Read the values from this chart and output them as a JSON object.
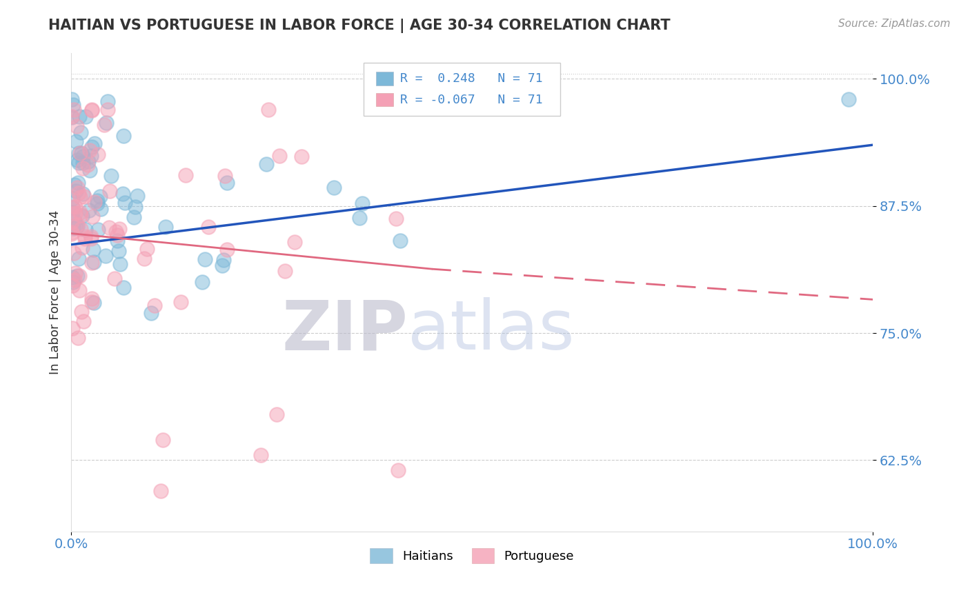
{
  "title": "HAITIAN VS PORTUGUESE IN LABOR FORCE | AGE 30-34 CORRELATION CHART",
  "source_text": "Source: ZipAtlas.com",
  "ylabel": "In Labor Force | Age 30-34",
  "xlim": [
    0.0,
    1.0
  ],
  "ylim": [
    0.555,
    1.025
  ],
  "yticks": [
    0.625,
    0.75,
    0.875,
    1.0
  ],
  "ytick_labels": [
    "62.5%",
    "75.0%",
    "87.5%",
    "100.0%"
  ],
  "xticks": [
    0.0,
    1.0
  ],
  "xtick_labels": [
    "0.0%",
    "100.0%"
  ],
  "haitian_color": "#7db8d8",
  "portuguese_color": "#f4a0b5",
  "haitian_R": 0.248,
  "haitian_N": 71,
  "portuguese_R": -0.067,
  "portuguese_N": 71,
  "trend_blue": "#2255bb",
  "trend_pink": "#e06880",
  "background_color": "#ffffff",
  "grid_color": "#cccccc",
  "watermark_zip": "ZIP",
  "watermark_atlas": "atlas",
  "watermark_color_zip": "#bbbbcc",
  "watermark_color_atlas": "#aabbdd",
  "legend_haitian": "Haitians",
  "legend_portuguese": "Portuguese",
  "tick_color": "#4488cc",
  "title_color": "#333333"
}
